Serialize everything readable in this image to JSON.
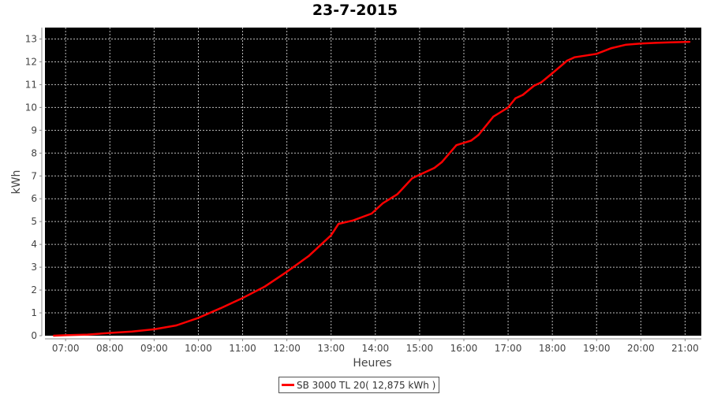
{
  "chart_data": {
    "type": "line",
    "title": "23-7-2015",
    "xlabel": "Heures",
    "ylabel": "kWh",
    "ylim": [
      0,
      13.5
    ],
    "xlim": [
      "06:32",
      "21:22"
    ],
    "x_ticks": [
      "07:00",
      "08:00",
      "09:00",
      "10:00",
      "11:00",
      "12:00",
      "13:00",
      "14:00",
      "15:00",
      "16:00",
      "17:00",
      "18:00",
      "19:00",
      "20:00",
      "21:00"
    ],
    "y_ticks": [
      0,
      1,
      2,
      3,
      4,
      5,
      6,
      7,
      8,
      9,
      10,
      11,
      12,
      13
    ],
    "grid": true,
    "background": "#000000",
    "legend_position": "bottom",
    "series": [
      {
        "name": "SB 3000 TL 20( 12,875 kWh )",
        "color": "#ff0000",
        "x": [
          "06:44",
          "07:00",
          "07:30",
          "08:00",
          "08:30",
          "09:00",
          "09:30",
          "10:00",
          "10:30",
          "11:00",
          "11:30",
          "12:00",
          "12:30",
          "13:00",
          "13:10",
          "13:30",
          "13:55",
          "14:10",
          "14:30",
          "14:50",
          "15:00",
          "15:20",
          "15:30",
          "15:50",
          "16:10",
          "16:20",
          "16:40",
          "17:00",
          "17:10",
          "17:20",
          "17:35",
          "17:45",
          "18:00",
          "18:20",
          "18:30",
          "18:50",
          "19:00",
          "19:20",
          "19:40",
          "20:00",
          "20:20",
          "20:40",
          "21:06"
        ],
        "y": [
          0,
          0.02,
          0.05,
          0.12,
          0.18,
          0.28,
          0.45,
          0.78,
          1.2,
          1.65,
          2.15,
          2.8,
          3.5,
          4.4,
          4.9,
          5.05,
          5.35,
          5.8,
          6.2,
          6.9,
          7.05,
          7.35,
          7.6,
          8.35,
          8.55,
          8.8,
          9.6,
          10.0,
          10.4,
          10.55,
          10.95,
          11.1,
          11.5,
          12.05,
          12.2,
          12.3,
          12.35,
          12.6,
          12.75,
          12.8,
          12.83,
          12.85,
          12.875
        ]
      }
    ]
  }
}
